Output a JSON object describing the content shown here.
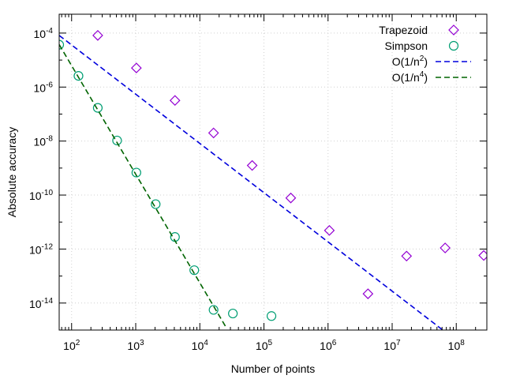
{
  "chart_data": {
    "type": "scatter",
    "title": "",
    "xlabel": "Number of points",
    "ylabel": "Absolute accuracy",
    "xscale": "log",
    "yscale": "log",
    "xlim": [
      64,
      300000000
    ],
    "ylim": [
      1e-15,
      0.0005
    ],
    "grid": true,
    "legend_position": "top-right",
    "x_ticks": [
      {
        "value": 100,
        "base": "10",
        "exp": "2"
      },
      {
        "value": 1000,
        "base": "10",
        "exp": "3"
      },
      {
        "value": 10000,
        "base": "10",
        "exp": "4"
      },
      {
        "value": 100000,
        "base": "10",
        "exp": "5"
      },
      {
        "value": 1000000,
        "base": "10",
        "exp": "6"
      },
      {
        "value": 10000000,
        "base": "10",
        "exp": "7"
      },
      {
        "value": 100000000,
        "base": "10",
        "exp": "8"
      }
    ],
    "y_ticks": [
      {
        "value": 0.0001,
        "base": "10",
        "exp": "-4"
      },
      {
        "value": 1e-06,
        "base": "10",
        "exp": "-6"
      },
      {
        "value": 1e-08,
        "base": "10",
        "exp": "-8"
      },
      {
        "value": 1e-10,
        "base": "10",
        "exp": "-10"
      },
      {
        "value": 1e-12,
        "base": "10",
        "exp": "-12"
      },
      {
        "value": 1e-14,
        "base": "10",
        "exp": "-14"
      }
    ],
    "series": [
      {
        "name": "Trapezoid",
        "kind": "points",
        "marker": "diamond",
        "color": "#9400d3",
        "points": [
          [
            256,
            8.2e-05
          ],
          [
            1024,
            5.1e-06
          ],
          [
            4096,
            3.2e-07
          ],
          [
            16384,
            2e-08
          ],
          [
            65536,
            1.25e-09
          ],
          [
            262144,
            7.8e-11
          ],
          [
            1048576,
            4.9e-12
          ],
          [
            4194304,
            2.2e-14
          ],
          [
            16777216,
            5.5e-13
          ],
          [
            67108864,
            1.1e-12
          ],
          [
            268435456,
            5.8e-13
          ]
        ]
      },
      {
        "name": "Simpson",
        "kind": "points",
        "marker": "circle",
        "color": "#009e73",
        "points": [
          [
            64,
            3.7e-05
          ],
          [
            128,
            2.6e-06
          ],
          [
            256,
            1.7e-07
          ],
          [
            512,
            1.05e-08
          ],
          [
            1024,
            6.8e-10
          ],
          [
            2048,
            4.6e-11
          ],
          [
            4096,
            2.8e-12
          ],
          [
            8192,
            1.65e-13
          ],
          [
            16384,
            5.6e-15
          ],
          [
            32768,
            4.1e-15
          ],
          [
            131072,
            3.3e-15
          ]
        ]
      },
      {
        "name": "O(1/n",
        "exponent": "2",
        "name_suffix": ")",
        "kind": "line",
        "dash": true,
        "color": "#0000dd",
        "points": [
          [
            64,
            8.2e-05
          ],
          [
            75000000,
            7e-16
          ]
        ]
      },
      {
        "name": "O(1/n",
        "exponent": "4",
        "name_suffix": ")",
        "kind": "line",
        "dash": true,
        "color": "#006400",
        "points": [
          [
            64,
            3.75e-05
          ],
          [
            26000,
            1.2e-15
          ]
        ]
      }
    ]
  }
}
